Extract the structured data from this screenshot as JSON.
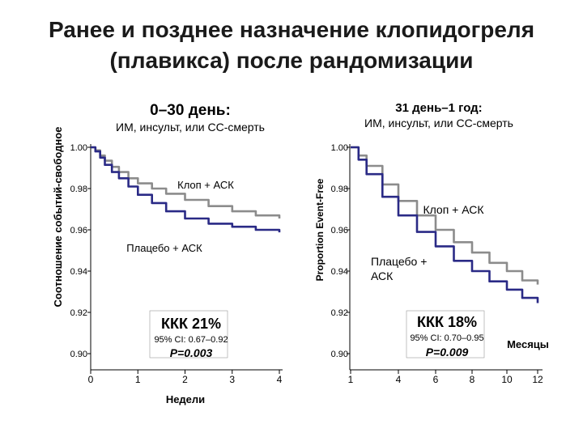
{
  "title_line1": "Ранее и позднее назначение клопидогреля",
  "title_line2": "(плавикса) после рандомизации",
  "chart_data": [
    {
      "type": "line",
      "title": "0–30 день:",
      "subtitle": "ИМ, инсульт, или СС-смерть",
      "xlabel": "Недели",
      "ylabel": "Соотношение событий-свободное",
      "xlim": [
        0,
        4
      ],
      "ylim": [
        0.9,
        1.0
      ],
      "xticks": [
        "0",
        "1",
        "2",
        "3",
        "4"
      ],
      "yticks": [
        "1.00",
        "0.98",
        "0.96",
        "0.94",
        "0.92",
        "0.90"
      ],
      "series": [
        {
          "name": "Клоп + АСК",
          "color": "#8c8c8c",
          "x": [
            0,
            0.1,
            0.2,
            0.3,
            0.45,
            0.6,
            0.8,
            1.0,
            1.3,
            1.6,
            2.0,
            2.5,
            3.0,
            3.5,
            4.0
          ],
          "y": [
            1.0,
            0.9985,
            0.996,
            0.9935,
            0.9905,
            0.988,
            0.985,
            0.9825,
            0.98,
            0.9775,
            0.9745,
            0.9715,
            0.969,
            0.967,
            0.9655
          ]
        },
        {
          "name": "Плацебо + АСК",
          "color": "#2a2a86",
          "x": [
            0,
            0.1,
            0.2,
            0.3,
            0.45,
            0.6,
            0.8,
            1.0,
            1.3,
            1.6,
            2.0,
            2.5,
            3.0,
            3.5,
            4.0
          ],
          "y": [
            1.0,
            0.998,
            0.995,
            0.9915,
            0.988,
            0.985,
            0.981,
            0.977,
            0.973,
            0.969,
            0.9655,
            0.963,
            0.9615,
            0.96,
            0.9588
          ]
        }
      ],
      "annotation": {
        "rrr": "ККК 21%",
        "ci": "95% CI: 0.67–0.92",
        "p": "P=0.003"
      }
    },
    {
      "type": "line",
      "title": "31 день–1 год:",
      "subtitle": "ИМ, инсульт, или СС-смерть",
      "xlabel": "Месяцы",
      "ylabel": "Proportion Event-Free",
      "xlim": [
        1,
        12
      ],
      "ylim": [
        0.9,
        1.0
      ],
      "xticks": [
        "1",
        "4",
        "6",
        "8",
        "10",
        "12"
      ],
      "yticks": [
        "1.00",
        "0.98",
        "0.96",
        "0.94",
        "0.92",
        "0.90"
      ],
      "series": [
        {
          "name": "Клоп + АСК",
          "color": "#8c8c8c",
          "x": [
            1,
            1.5,
            2,
            3,
            4,
            5,
            6,
            7,
            8,
            9,
            10,
            11,
            12
          ],
          "y": [
            1.0,
            0.996,
            0.991,
            0.982,
            0.974,
            0.967,
            0.96,
            0.954,
            0.949,
            0.944,
            0.94,
            0.9355,
            0.9335
          ]
        },
        {
          "name": "Плацебо + АСК",
          "color": "#2a2a86",
          "x": [
            1,
            1.5,
            2,
            3,
            4,
            5,
            6,
            7,
            8,
            9,
            10,
            11,
            12
          ],
          "y": [
            1.0,
            0.994,
            0.987,
            0.976,
            0.967,
            0.959,
            0.952,
            0.945,
            0.94,
            0.935,
            0.931,
            0.927,
            0.9245
          ]
        }
      ],
      "annotation": {
        "rrr": "ККК 18%",
        "ci": "95% CI: 0.70–0.95",
        "p": "P=0.009"
      }
    }
  ]
}
